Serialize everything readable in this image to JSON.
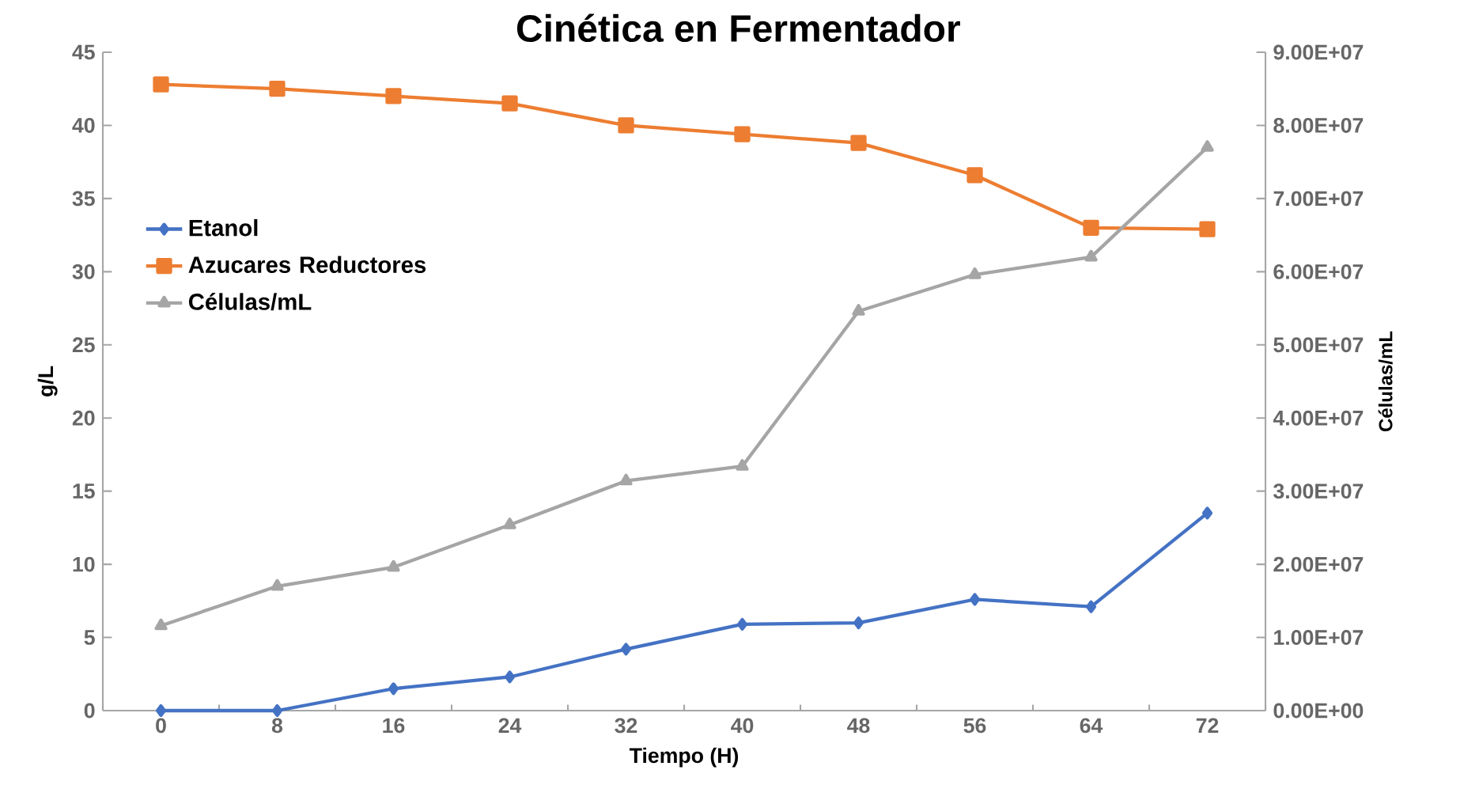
{
  "chart_data": {
    "type": "line",
    "title": "Cinética en Fermentador",
    "xlabel": "Tiempo (H)",
    "ylabel": "g/L",
    "y2label": "Células/mL",
    "categories": [
      "0",
      "8",
      "16",
      "24",
      "32",
      "40",
      "48",
      "56",
      "64",
      "72"
    ],
    "series": [
      {
        "name": "Etanol",
        "color": "#4472c4",
        "marker": "diamond",
        "values": [
          0,
          0,
          1.5,
          2.3,
          4.2,
          5.9,
          6.0,
          7.6,
          7.1,
          13.5
        ]
      },
      {
        "name": "Azucares Reductores",
        "color": "#ed7d31",
        "marker": "square",
        "values": [
          42.8,
          42.5,
          42.0,
          41.5,
          40.0,
          39.4,
          38.8,
          36.6,
          33.0,
          32.9
        ]
      },
      {
        "name": "Células/mL",
        "color": "#a5a5a5",
        "marker": "triangle",
        "axis": "y2",
        "values": [
          11600000,
          17000000,
          19600000,
          25400000,
          31400000,
          33400000,
          54600000,
          59600000,
          62000000,
          77000000
        ]
      }
    ],
    "ylim": [
      0,
      45
    ],
    "yticks": [
      0,
      5,
      10,
      15,
      20,
      25,
      30,
      35,
      40,
      45
    ],
    "y2lim": [
      0,
      90000000
    ],
    "y2ticks": [
      {
        "value": 0,
        "label": "0.00E+00"
      },
      {
        "value": 10000000,
        "label": "1.00E+07"
      },
      {
        "value": 20000000,
        "label": "2.00E+07"
      },
      {
        "value": 30000000,
        "label": "3.00E+07"
      },
      {
        "value": 40000000,
        "label": "4.00E+07"
      },
      {
        "value": 50000000,
        "label": "5.00E+07"
      },
      {
        "value": 60000000,
        "label": "6.00E+07"
      },
      {
        "value": 70000000,
        "label": "7.00E+07"
      },
      {
        "value": 80000000,
        "label": "8.00E+07"
      },
      {
        "value": 90000000,
        "label": "9.00E+07"
      }
    ],
    "legend": "left",
    "grid": false
  }
}
